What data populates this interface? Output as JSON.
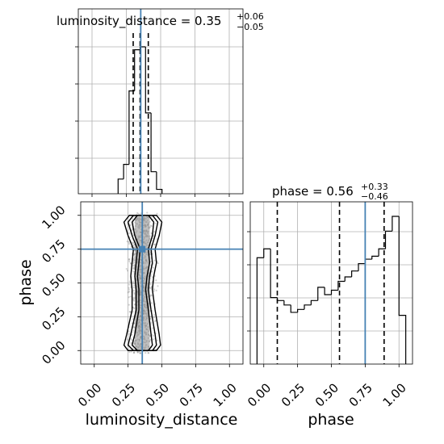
{
  "chart_data": [
    {
      "type": "histogram",
      "panel": "luminosity_distance-1d",
      "title": {
        "prefix": "luminosity_distance = 0.35",
        "plus": "+0.06",
        "minus": "−0.05"
      },
      "xlim": [
        -0.1,
        1.1
      ],
      "bins": [
        {
          "x0": 0.19,
          "x1": 0.23,
          "count": 0.1
        },
        {
          "x0": 0.23,
          "x1": 0.27,
          "count": 0.2
        },
        {
          "x0": 0.27,
          "x1": 0.31,
          "count": 0.7
        },
        {
          "x0": 0.31,
          "x1": 0.35,
          "count": 0.98
        },
        {
          "x0": 0.35,
          "x1": 0.39,
          "count": 1.0
        },
        {
          "x0": 0.39,
          "x1": 0.43,
          "count": 0.55
        },
        {
          "x0": 0.43,
          "x1": 0.47,
          "count": 0.15
        },
        {
          "x0": 0.47,
          "x1": 0.51,
          "count": 0.03
        }
      ],
      "quantiles": [
        0.3,
        0.35,
        0.41
      ],
      "truth": 0.355,
      "ytick_count": 4
    },
    {
      "type": "histogram",
      "panel": "phase-1d",
      "title": {
        "prefix": "phase = 0.56",
        "plus": "+0.33",
        "minus": "−0.46"
      },
      "xlim": [
        -0.1,
        1.1
      ],
      "xticks": [
        "0.00",
        "0.25",
        "0.50",
        "0.75",
        "1.00"
      ],
      "xtick_values": [
        0.0,
        0.25,
        0.5,
        0.75,
        1.0
      ],
      "xlabel": "phase",
      "bins": [
        {
          "x0": -0.05,
          "x1": 0.0,
          "count": 0.72
        },
        {
          "x0": 0.0,
          "x1": 0.05,
          "count": 0.78
        },
        {
          "x0": 0.05,
          "x1": 0.1,
          "count": 0.45
        },
        {
          "x0": 0.1,
          "x1": 0.15,
          "count": 0.43
        },
        {
          "x0": 0.15,
          "x1": 0.2,
          "count": 0.4
        },
        {
          "x0": 0.2,
          "x1": 0.25,
          "count": 0.35
        },
        {
          "x0": 0.25,
          "x1": 0.3,
          "count": 0.37
        },
        {
          "x0": 0.3,
          "x1": 0.35,
          "count": 0.4
        },
        {
          "x0": 0.35,
          "x1": 0.4,
          "count": 0.43
        },
        {
          "x0": 0.4,
          "x1": 0.45,
          "count": 0.52
        },
        {
          "x0": 0.45,
          "x1": 0.5,
          "count": 0.47
        },
        {
          "x0": 0.5,
          "x1": 0.55,
          "count": 0.5
        },
        {
          "x0": 0.55,
          "x1": 0.6,
          "count": 0.56
        },
        {
          "x0": 0.6,
          "x1": 0.65,
          "count": 0.59
        },
        {
          "x0": 0.65,
          "x1": 0.7,
          "count": 0.63
        },
        {
          "x0": 0.7,
          "x1": 0.75,
          "count": 0.68
        },
        {
          "x0": 0.75,
          "x1": 0.8,
          "count": 0.71
        },
        {
          "x0": 0.8,
          "x1": 0.85,
          "count": 0.73
        },
        {
          "x0": 0.85,
          "x1": 0.9,
          "count": 0.78
        },
        {
          "x0": 0.9,
          "x1": 0.95,
          "count": 0.9
        },
        {
          "x0": 0.95,
          "x1": 1.0,
          "count": 1.0
        },
        {
          "x0": 1.0,
          "x1": 1.05,
          "count": 0.33
        }
      ],
      "quantiles": [
        0.1,
        0.56,
        0.89
      ],
      "truth": 0.75,
      "ytick_count": 4
    },
    {
      "type": "scatter-contour",
      "panel": "phase-vs-luminosity_distance-2d",
      "xlim": [
        -0.1,
        1.1
      ],
      "ylim": [
        -0.1,
        1.1
      ],
      "xticks": [
        "0.00",
        "0.25",
        "0.50",
        "0.75",
        "1.00"
      ],
      "xtick_values": [
        0.0,
        0.25,
        0.5,
        0.75,
        1.0
      ],
      "yticks": [
        "0.00",
        "0.25",
        "0.50",
        "0.75",
        "1.00"
      ],
      "ytick_values": [
        0.0,
        0.25,
        0.5,
        0.75,
        1.0
      ],
      "xlabel": "luminosity_distance",
      "ylabel": "phase",
      "truth": {
        "x": 0.355,
        "y": 0.75
      },
      "contours": [
        {
          "y": [
            0.0,
            0.04,
            0.12,
            0.3,
            0.45,
            0.55,
            0.65,
            0.75,
            0.85,
            0.95,
            1.0
          ],
          "x0": [
            0.32,
            0.28,
            0.3,
            0.33,
            0.33,
            0.32,
            0.33,
            0.34,
            0.3,
            0.28,
            0.32
          ],
          "x1": [
            0.4,
            0.43,
            0.42,
            0.4,
            0.38,
            0.39,
            0.41,
            0.4,
            0.43,
            0.44,
            0.4
          ]
        },
        {
          "y": [
            0.0,
            0.04,
            0.12,
            0.3,
            0.45,
            0.55,
            0.65,
            0.75,
            0.85,
            0.95,
            1.0
          ],
          "x0": [
            0.29,
            0.25,
            0.27,
            0.31,
            0.31,
            0.3,
            0.31,
            0.32,
            0.28,
            0.25,
            0.29
          ],
          "x1": [
            0.43,
            0.46,
            0.45,
            0.42,
            0.4,
            0.41,
            0.43,
            0.42,
            0.45,
            0.47,
            0.43
          ]
        },
        {
          "y": [
            0.0,
            0.04,
            0.12,
            0.3,
            0.45,
            0.55,
            0.65,
            0.75,
            0.85,
            0.95,
            1.0
          ],
          "x0": [
            0.25,
            0.22,
            0.24,
            0.28,
            0.28,
            0.27,
            0.28,
            0.29,
            0.25,
            0.22,
            0.26
          ],
          "x1": [
            0.46,
            0.49,
            0.48,
            0.45,
            0.43,
            0.44,
            0.46,
            0.45,
            0.48,
            0.5,
            0.46
          ]
        }
      ]
    }
  ]
}
